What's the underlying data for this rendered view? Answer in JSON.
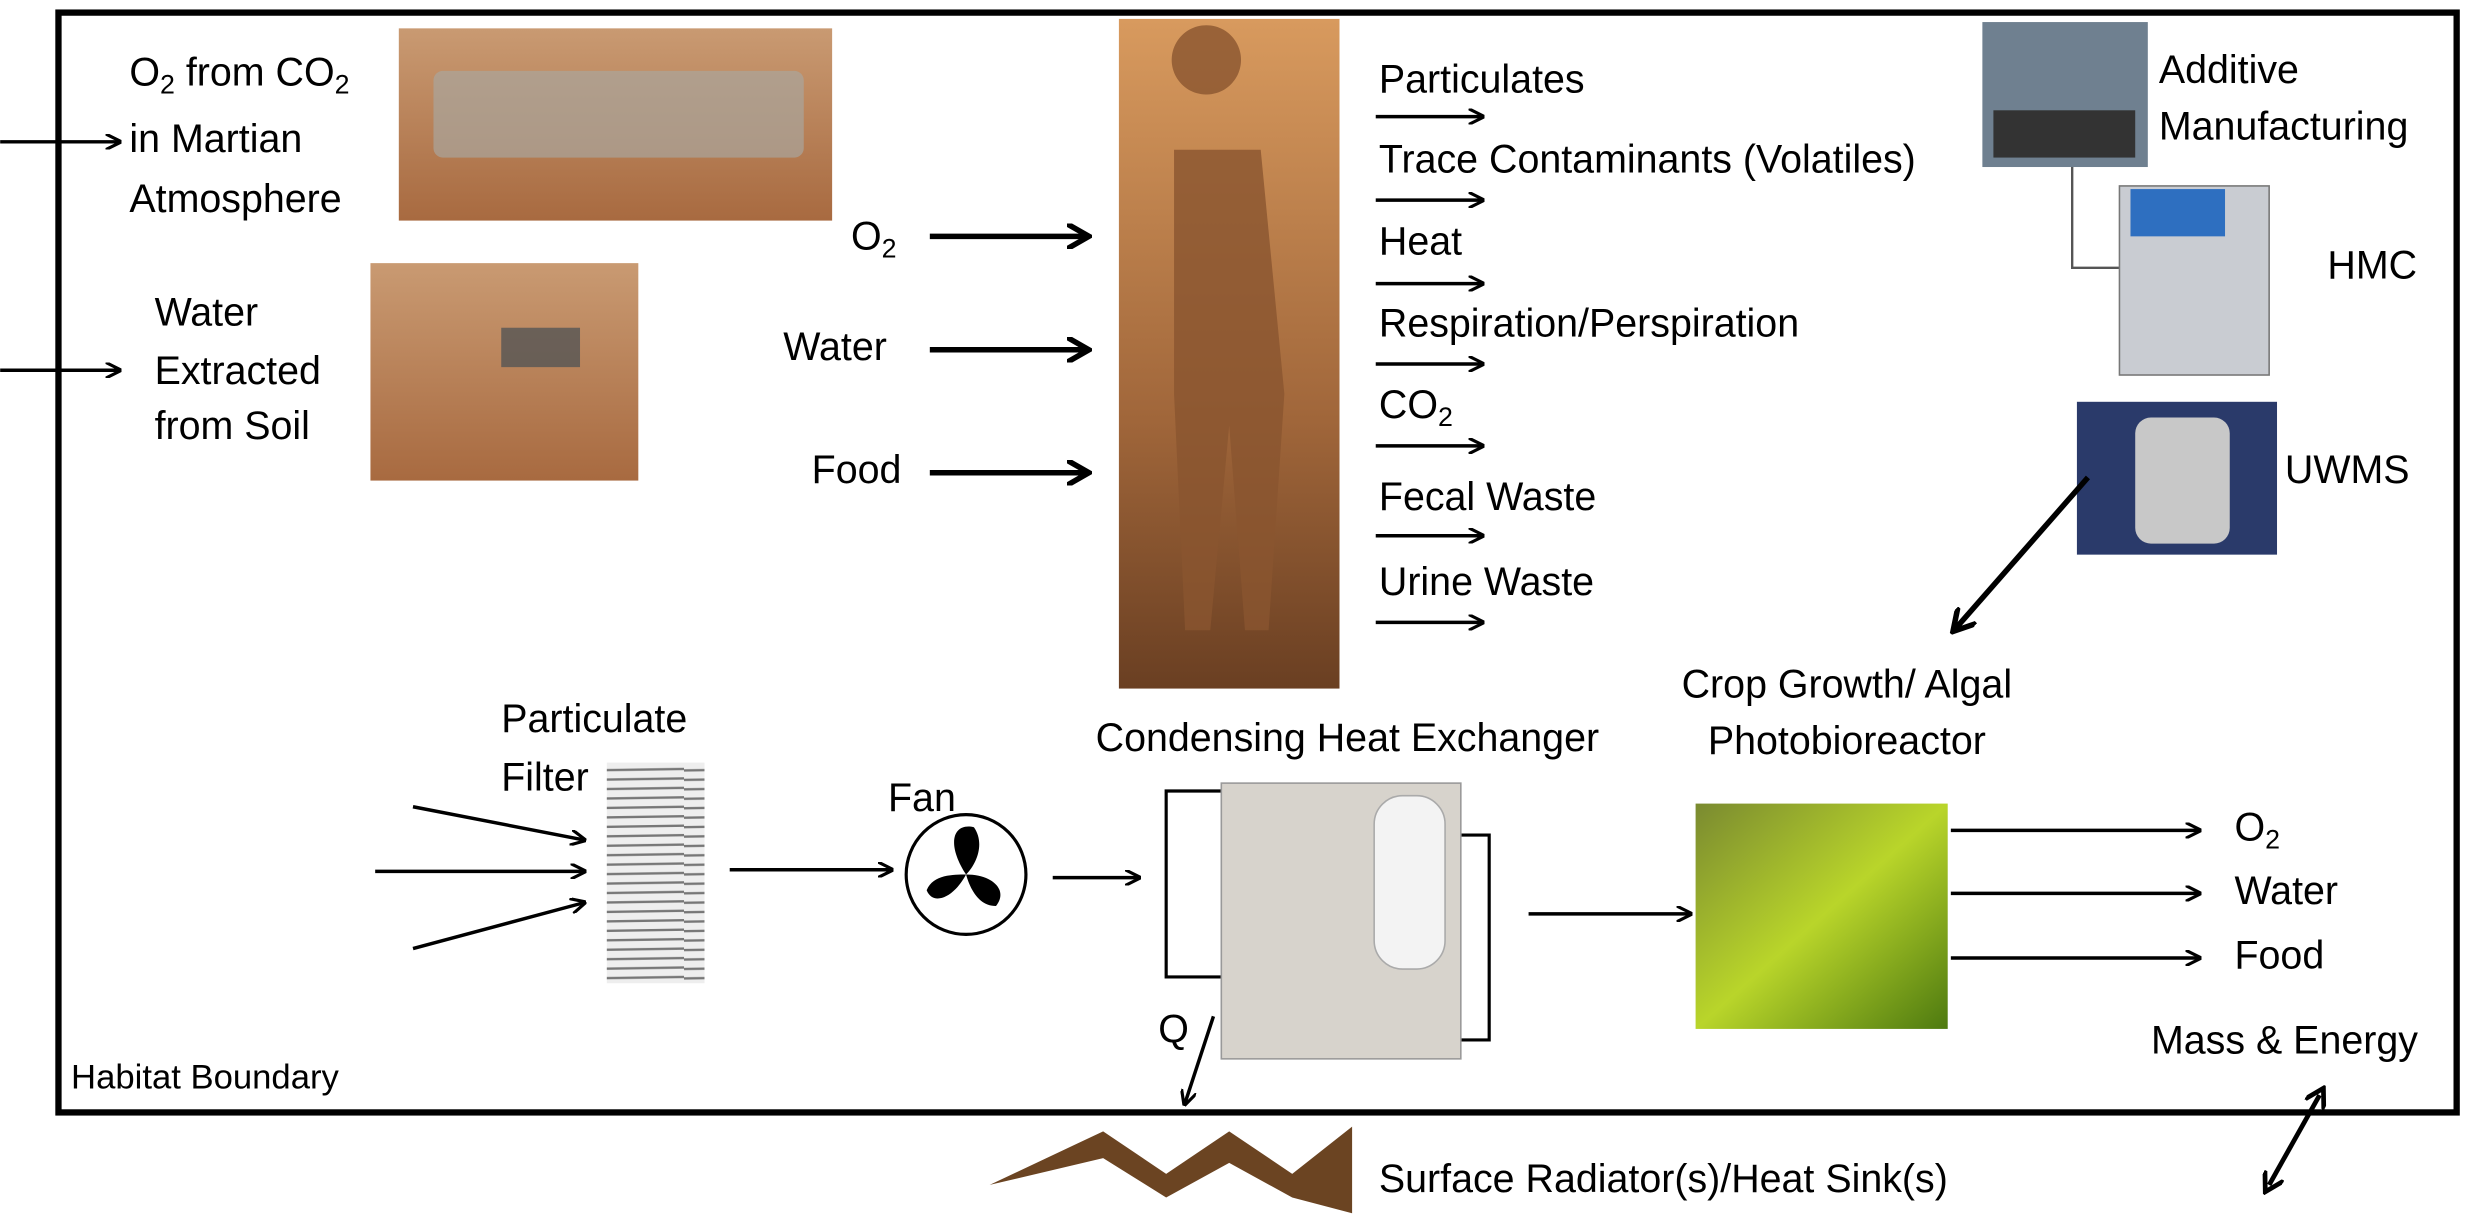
{
  "sources": {
    "martian_o2": {
      "line1": [
        "O",
        "2",
        " from CO",
        "2"
      ],
      "line2": "in Martian",
      "line3": "Atmosphere"
    },
    "soil_water": {
      "line1": "Water",
      "line2": "Extracted",
      "line3": "from Soil"
    }
  },
  "inputs": {
    "o2": [
      "O",
      "2"
    ],
    "water": "Water",
    "food": "Food"
  },
  "outputs": {
    "particulates": "Particulates",
    "trace": "Trace Contaminants (Volatiles)",
    "heat": "Heat",
    "respiration": "Respiration/Perspiration",
    "co2": [
      "CO",
      "2"
    ],
    "fecal": "Fecal Waste",
    "urine": "Urine Waste"
  },
  "equipment": {
    "additive": {
      "line1": "Additive",
      "line2": "Manufacturing"
    },
    "hmc": "HMC",
    "uwms": "UWMS"
  },
  "crop": {
    "line1": "Crop Growth/ Algal",
    "line2": "Photobioreactor",
    "outputs": {
      "o2": [
        "O",
        "2"
      ],
      "water": "Water",
      "food": "Food"
    }
  },
  "air_loop": {
    "filter": {
      "line1": "Particulate",
      "line2": "Filter"
    },
    "fan": "Fan",
    "chx": "Condensing Heat Exchanger",
    "q": "Q"
  },
  "boundary": "Habitat Boundary",
  "mass_energy": "Mass & Energy",
  "radiator": "Surface Radiator(s)/Heat Sink(s)"
}
